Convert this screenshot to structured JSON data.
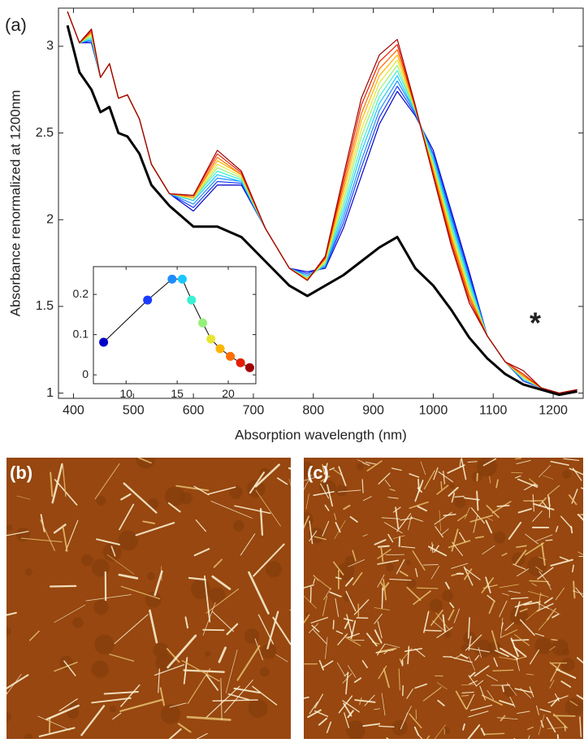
{
  "chart_data": [
    {
      "type": "line",
      "panel_label": "(a)",
      "annotation": "*",
      "xlabel": "Absorption wavelength (nm)",
      "ylabel": "Absorbance renormalized at 1200nm",
      "xlim": [
        375,
        1250
      ],
      "ylim": [
        0.97,
        3.22
      ],
      "xticks": [
        400,
        500,
        600,
        700,
        800,
        900,
        1000,
        1100,
        1200
      ],
      "yticks": [
        1,
        1.5,
        2,
        2.5,
        3
      ],
      "x": [
        390,
        410,
        430,
        445,
        460,
        475,
        490,
        510,
        530,
        560,
        600,
        640,
        680,
        720,
        760,
        790,
        820,
        850,
        880,
        910,
        940,
        970,
        1000,
        1030,
        1060,
        1090,
        1120,
        1150,
        1180,
        1210,
        1240
      ],
      "series": [
        {
          "color": "#0000c8",
          "values": [
            3.2,
            3.02,
            3.02,
            2.82,
            2.9,
            2.7,
            2.72,
            2.58,
            2.32,
            2.15,
            2.05,
            2.2,
            2.2,
            1.95,
            1.72,
            1.7,
            1.72,
            1.95,
            2.25,
            2.55,
            2.74,
            2.6,
            2.4,
            2.05,
            1.7,
            1.33,
            1.18,
            1.07,
            1.03,
            1.0,
            1.02
          ]
        },
        {
          "color": "#1a3cff",
          "values": [
            3.2,
            3.02,
            3.03,
            2.82,
            2.9,
            2.7,
            2.72,
            2.58,
            2.32,
            2.15,
            2.07,
            2.22,
            2.21,
            1.95,
            1.72,
            1.69,
            1.73,
            1.98,
            2.3,
            2.59,
            2.77,
            2.61,
            2.38,
            2.03,
            1.68,
            1.33,
            1.18,
            1.07,
            1.03,
            1.0,
            1.02
          ]
        },
        {
          "color": "#1e8cff",
          "values": [
            3.2,
            3.02,
            3.04,
            2.82,
            2.9,
            2.7,
            2.72,
            2.58,
            2.32,
            2.15,
            2.09,
            2.24,
            2.22,
            1.95,
            1.72,
            1.68,
            1.73,
            2.01,
            2.34,
            2.63,
            2.8,
            2.62,
            2.37,
            2.01,
            1.66,
            1.33,
            1.18,
            1.08,
            1.03,
            1.0,
            1.02
          ]
        },
        {
          "color": "#19c8ff",
          "values": [
            3.2,
            3.02,
            3.04,
            2.82,
            2.9,
            2.7,
            2.72,
            2.58,
            2.32,
            2.15,
            2.11,
            2.26,
            2.22,
            1.95,
            1.72,
            1.67,
            1.74,
            2.04,
            2.39,
            2.67,
            2.83,
            2.62,
            2.35,
            1.99,
            1.65,
            1.33,
            1.18,
            1.08,
            1.03,
            1.0,
            1.02
          ]
        },
        {
          "color": "#3cf0d2",
          "values": [
            3.2,
            3.02,
            3.05,
            2.82,
            2.9,
            2.7,
            2.72,
            2.58,
            2.32,
            2.15,
            2.12,
            2.28,
            2.23,
            1.95,
            1.72,
            1.67,
            1.75,
            2.07,
            2.43,
            2.71,
            2.86,
            2.63,
            2.34,
            1.97,
            1.63,
            1.33,
            1.18,
            1.08,
            1.03,
            1.0,
            1.02
          ]
        },
        {
          "color": "#96f078",
          "values": [
            3.2,
            3.02,
            3.06,
            2.82,
            2.9,
            2.7,
            2.72,
            2.58,
            2.32,
            2.15,
            2.12,
            2.3,
            2.24,
            1.95,
            1.72,
            1.66,
            1.75,
            2.1,
            2.48,
            2.75,
            2.89,
            2.63,
            2.32,
            1.95,
            1.61,
            1.33,
            1.18,
            1.09,
            1.03,
            1.0,
            1.02
          ]
        },
        {
          "color": "#e6e632",
          "values": [
            3.2,
            3.02,
            3.07,
            2.82,
            2.9,
            2.7,
            2.72,
            2.58,
            2.32,
            2.15,
            2.12,
            2.32,
            2.25,
            1.95,
            1.72,
            1.66,
            1.76,
            2.13,
            2.52,
            2.79,
            2.92,
            2.64,
            2.31,
            1.93,
            1.59,
            1.33,
            1.18,
            1.09,
            1.03,
            1.0,
            1.02
          ]
        },
        {
          "color": "#ffb400",
          "values": [
            3.2,
            3.02,
            3.08,
            2.82,
            2.9,
            2.7,
            2.72,
            2.58,
            2.32,
            2.15,
            2.13,
            2.34,
            2.26,
            1.95,
            1.72,
            1.66,
            1.77,
            2.16,
            2.57,
            2.83,
            2.95,
            2.64,
            2.29,
            1.91,
            1.57,
            1.33,
            1.18,
            1.1,
            1.03,
            1.0,
            1.02
          ]
        },
        {
          "color": "#ff6e00",
          "values": [
            3.2,
            3.02,
            3.08,
            2.82,
            2.9,
            2.7,
            2.72,
            2.58,
            2.32,
            2.15,
            2.13,
            2.36,
            2.26,
            1.95,
            1.72,
            1.65,
            1.78,
            2.19,
            2.61,
            2.87,
            2.98,
            2.65,
            2.28,
            1.89,
            1.56,
            1.33,
            1.18,
            1.1,
            1.03,
            1.0,
            1.02
          ]
        },
        {
          "color": "#e61e00",
          "values": [
            3.2,
            3.02,
            3.09,
            2.82,
            2.9,
            2.7,
            2.72,
            2.58,
            2.32,
            2.15,
            2.14,
            2.38,
            2.27,
            1.95,
            1.72,
            1.65,
            1.78,
            2.22,
            2.66,
            2.91,
            3.01,
            2.65,
            2.26,
            1.87,
            1.54,
            1.33,
            1.18,
            1.11,
            1.03,
            1.0,
            1.02
          ]
        },
        {
          "color": "#a00000",
          "values": [
            3.2,
            3.02,
            3.1,
            2.82,
            2.9,
            2.7,
            2.72,
            2.58,
            2.32,
            2.15,
            2.14,
            2.4,
            2.28,
            1.95,
            1.72,
            1.65,
            1.79,
            2.25,
            2.7,
            2.95,
            3.04,
            2.66,
            2.25,
            1.85,
            1.52,
            1.33,
            1.18,
            1.13,
            1.03,
            1.0,
            1.02
          ]
        },
        {
          "color": "#000000",
          "values": [
            3.12,
            2.85,
            2.75,
            2.62,
            2.65,
            2.5,
            2.48,
            2.38,
            2.2,
            2.08,
            1.96,
            1.96,
            1.9,
            1.76,
            1.62,
            1.56,
            1.62,
            1.68,
            1.76,
            1.84,
            1.9,
            1.72,
            1.62,
            1.48,
            1.32,
            1.2,
            1.11,
            1.05,
            1.02,
            0.99,
            1.01
          ]
        }
      ]
    },
    {
      "type": "scatter",
      "xlim": [
        6.8,
        22.7
      ],
      "ylim": [
        -0.022,
        0.269
      ],
      "xticks": [
        10,
        15,
        20
      ],
      "yticks": [
        0,
        0.1,
        0.2
      ],
      "line_color": "#000000",
      "x": [
        7.8,
        12.1,
        14.5,
        15.5,
        16.4,
        17.5,
        18.3,
        19.2,
        20.2,
        21.2,
        22.1
      ],
      "values": [
        0.081,
        0.186,
        0.238,
        0.238,
        0.186,
        0.129,
        0.089,
        0.065,
        0.046,
        0.03,
        0.018
      ],
      "colors": [
        "#0000c8",
        "#1a3cff",
        "#1e8cff",
        "#19c8ff",
        "#3cf0d2",
        "#96f078",
        "#e6e632",
        "#ffb400",
        "#ff6e00",
        "#e61e00",
        "#a00000"
      ]
    }
  ],
  "images": [
    {
      "label": "(b)"
    },
    {
      "label": "(c)"
    }
  ]
}
